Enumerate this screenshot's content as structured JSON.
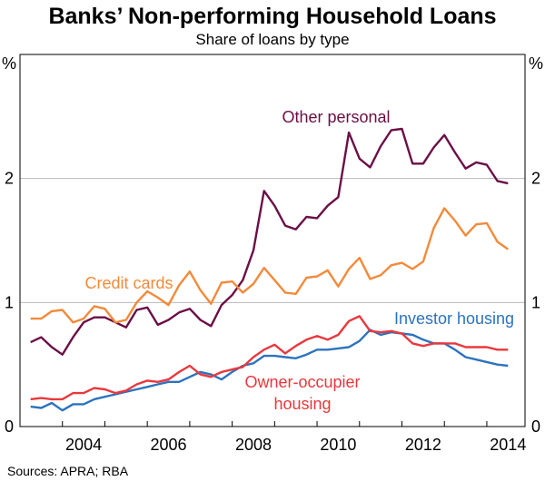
{
  "colors": {
    "other_personal": "#6b0f45",
    "credit_cards": "#f28a3a",
    "owner_occupier": "#e8383d",
    "investor": "#2c73bd",
    "grid": "#b8b8b8",
    "axis": "#000000"
  },
  "chart_data": {
    "type": "line",
    "title": "Banks’ Non-performing Household Loans",
    "subtitle": "Share of loans by type",
    "y_unit_left": "%",
    "y_unit_right": "%",
    "ylim": [
      0,
      3
    ],
    "xlim": [
      2003,
      2014.9
    ],
    "yticks": [
      "0",
      "1",
      "2"
    ],
    "ytick_values": [
      0,
      1,
      2
    ],
    "xticks": [
      "2004",
      "2006",
      "2008",
      "2010",
      "2012",
      "2014"
    ],
    "xtick_values": [
      2004,
      2006,
      2008,
      2010,
      2012,
      2014
    ],
    "grid": true,
    "source": "Sources:   APRA; RBA",
    "series": [
      {
        "name": "Other personal",
        "label_lines": [
          "Other personal"
        ],
        "color": "#6b0f45",
        "x": [
          2003.25,
          2003.5,
          2003.75,
          2004.0,
          2004.25,
          2004.5,
          2004.75,
          2005.0,
          2005.25,
          2005.5,
          2005.75,
          2006.0,
          2006.25,
          2006.5,
          2006.75,
          2007.0,
          2007.25,
          2007.5,
          2007.75,
          2008.0,
          2008.25,
          2008.5,
          2008.75,
          2009.0,
          2009.25,
          2009.5,
          2009.75,
          2010.0,
          2010.25,
          2010.5,
          2010.75,
          2011.0,
          2011.25,
          2011.5,
          2011.75,
          2012.0,
          2012.25,
          2012.5,
          2012.75,
          2013.0,
          2013.25,
          2013.5,
          2013.75,
          2014.0,
          2014.25,
          2014.5
        ],
        "values": [
          0.68,
          0.72,
          0.64,
          0.58,
          0.72,
          0.84,
          0.88,
          0.88,
          0.84,
          0.8,
          0.94,
          0.96,
          0.82,
          0.86,
          0.92,
          0.95,
          0.86,
          0.81,
          0.98,
          1.06,
          1.18,
          1.42,
          1.9,
          1.78,
          1.62,
          1.59,
          1.69,
          1.68,
          1.78,
          1.85,
          2.37,
          2.16,
          2.09,
          2.26,
          2.39,
          2.4,
          2.12,
          2.12,
          2.25,
          2.35,
          2.21,
          2.08,
          2.13,
          2.11,
          1.98,
          1.96
        ]
      },
      {
        "name": "Credit cards",
        "label_lines": [
          "Credit cards"
        ],
        "color": "#f28a3a",
        "x": [
          2003.25,
          2003.5,
          2003.75,
          2004.0,
          2004.25,
          2004.5,
          2004.75,
          2005.0,
          2005.25,
          2005.5,
          2005.75,
          2006.0,
          2006.25,
          2006.5,
          2006.75,
          2007.0,
          2007.25,
          2007.5,
          2007.75,
          2008.0,
          2008.25,
          2008.5,
          2008.75,
          2009.0,
          2009.25,
          2009.5,
          2009.75,
          2010.0,
          2010.25,
          2010.5,
          2010.75,
          2011.0,
          2011.25,
          2011.5,
          2011.75,
          2012.0,
          2012.25,
          2012.5,
          2012.75,
          2013.0,
          2013.25,
          2013.5,
          2013.75,
          2014.0,
          2014.25,
          2014.5
        ],
        "values": [
          0.87,
          0.87,
          0.93,
          0.94,
          0.84,
          0.87,
          0.97,
          0.95,
          0.84,
          0.86,
          1.0,
          1.09,
          1.04,
          0.98,
          1.14,
          1.25,
          1.1,
          0.99,
          1.16,
          1.17,
          1.08,
          1.15,
          1.28,
          1.18,
          1.08,
          1.07,
          1.2,
          1.21,
          1.26,
          1.13,
          1.27,
          1.36,
          1.19,
          1.22,
          1.3,
          1.32,
          1.27,
          1.33,
          1.6,
          1.76,
          1.66,
          1.54,
          1.63,
          1.64,
          1.49,
          1.43
        ]
      },
      {
        "name": "Investor housing",
        "label_lines": [
          "Investor housing"
        ],
        "color": "#2c73bd",
        "x": [
          2003.25,
          2003.5,
          2003.75,
          2004.0,
          2004.25,
          2004.5,
          2004.75,
          2005.0,
          2005.25,
          2005.5,
          2005.75,
          2006.0,
          2006.25,
          2006.5,
          2006.75,
          2007.0,
          2007.25,
          2007.5,
          2007.75,
          2008.0,
          2008.25,
          2008.5,
          2008.75,
          2009.0,
          2009.25,
          2009.5,
          2009.75,
          2010.0,
          2010.25,
          2010.5,
          2010.75,
          2011.0,
          2011.25,
          2011.5,
          2011.75,
          2012.0,
          2012.25,
          2012.5,
          2012.75,
          2013.0,
          2013.25,
          2013.5,
          2013.75,
          2014.0,
          2014.25,
          2014.5
        ],
        "values": [
          0.16,
          0.15,
          0.19,
          0.13,
          0.18,
          0.18,
          0.22,
          0.24,
          0.26,
          0.28,
          0.3,
          0.32,
          0.34,
          0.36,
          0.36,
          0.4,
          0.44,
          0.42,
          0.38,
          0.44,
          0.49,
          0.51,
          0.57,
          0.57,
          0.56,
          0.55,
          0.58,
          0.62,
          0.62,
          0.63,
          0.64,
          0.69,
          0.78,
          0.74,
          0.76,
          0.75,
          0.74,
          0.7,
          0.67,
          0.67,
          0.62,
          0.56,
          0.54,
          0.52,
          0.5,
          0.49
        ]
      },
      {
        "name": "Owner-occupier housing",
        "label_lines": [
          "Owner-occupier",
          "housing"
        ],
        "color": "#e8383d",
        "x": [
          2003.25,
          2003.5,
          2003.75,
          2004.0,
          2004.25,
          2004.5,
          2004.75,
          2005.0,
          2005.25,
          2005.5,
          2005.75,
          2006.0,
          2006.25,
          2006.5,
          2006.75,
          2007.0,
          2007.25,
          2007.5,
          2007.75,
          2008.0,
          2008.25,
          2008.5,
          2008.75,
          2009.0,
          2009.25,
          2009.5,
          2009.75,
          2010.0,
          2010.25,
          2010.5,
          2010.75,
          2011.0,
          2011.25,
          2011.5,
          2011.75,
          2012.0,
          2012.25,
          2012.5,
          2012.75,
          2013.0,
          2013.25,
          2013.5,
          2013.75,
          2014.0,
          2014.25,
          2014.5
        ],
        "values": [
          0.22,
          0.23,
          0.22,
          0.22,
          0.27,
          0.27,
          0.31,
          0.3,
          0.27,
          0.29,
          0.34,
          0.37,
          0.36,
          0.38,
          0.44,
          0.49,
          0.42,
          0.4,
          0.44,
          0.46,
          0.48,
          0.56,
          0.62,
          0.66,
          0.59,
          0.65,
          0.7,
          0.73,
          0.7,
          0.74,
          0.85,
          0.89,
          0.77,
          0.76,
          0.77,
          0.75,
          0.67,
          0.65,
          0.67,
          0.67,
          0.67,
          0.64,
          0.64,
          0.64,
          0.62,
          0.62
        ]
      }
    ]
  }
}
